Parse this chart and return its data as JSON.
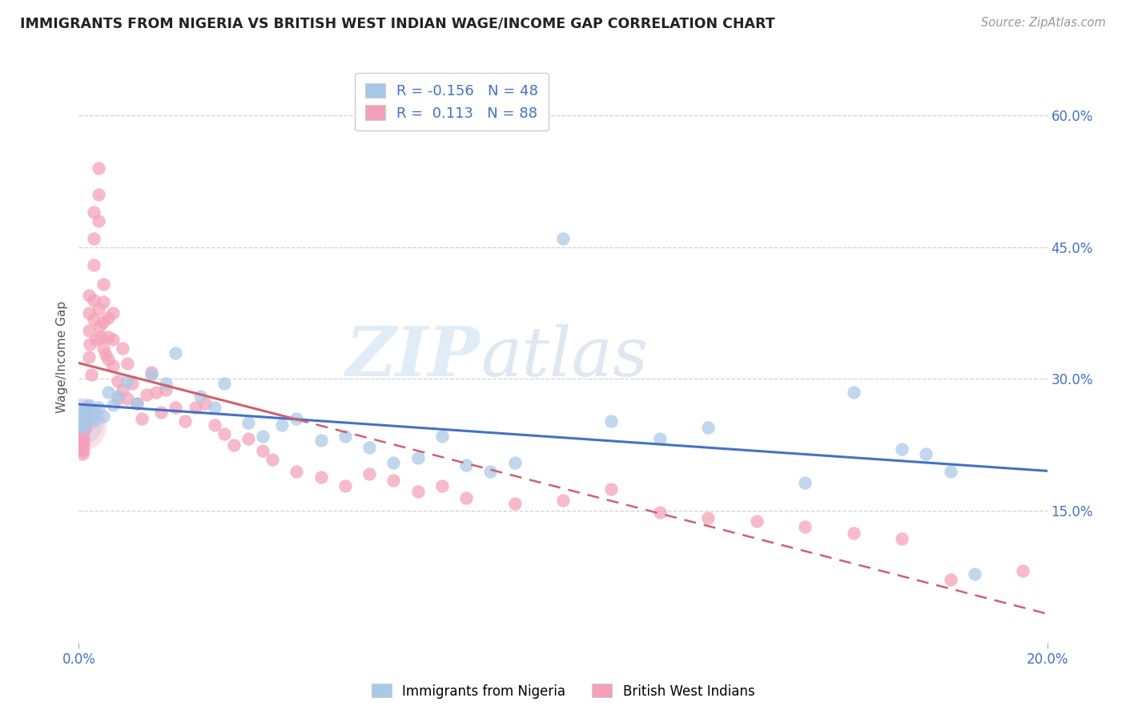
{
  "title": "IMMIGRANTS FROM NIGERIA VS BRITISH WEST INDIAN WAGE/INCOME GAP CORRELATION CHART",
  "source": "Source: ZipAtlas.com",
  "ylabel": "Wage/Income Gap",
  "yticks_labels": [
    "15.0%",
    "30.0%",
    "45.0%",
    "60.0%"
  ],
  "yticks_vals": [
    0.15,
    0.3,
    0.45,
    0.6
  ],
  "xticks_labels": [
    "0.0%",
    "20.0%"
  ],
  "xticks_vals": [
    0.0,
    0.2
  ],
  "legend1_label": "Immigrants from Nigeria",
  "legend1_R": "-0.156",
  "legend1_N": "48",
  "legend2_label": "British West Indians",
  "legend2_R": "0.113",
  "legend2_N": "88",
  "watermark_part1": "ZIP",
  "watermark_part2": "atlas",
  "blue_scatter_color": "#a8c8e8",
  "pink_scatter_color": "#f4a0b8",
  "blue_line_color": "#4472c4",
  "pink_line_color": "#d06070",
  "text_color": "#4472c4",
  "grid_color": "#d0d0d0",
  "bg_color": "#ffffff",
  "xlim": [
    0.0,
    0.2
  ],
  "ylim": [
    0.0,
    0.65
  ],
  "nigeria_x": [
    0.0003,
    0.0004,
    0.0005,
    0.0006,
    0.0008,
    0.001,
    0.001,
    0.0015,
    0.002,
    0.002,
    0.003,
    0.003,
    0.004,
    0.005,
    0.006,
    0.007,
    0.008,
    0.01,
    0.012,
    0.015,
    0.018,
    0.02,
    0.025,
    0.028,
    0.03,
    0.035,
    0.038,
    0.042,
    0.045,
    0.05,
    0.055,
    0.06,
    0.065,
    0.07,
    0.075,
    0.08,
    0.085,
    0.09,
    0.1,
    0.11,
    0.12,
    0.13,
    0.15,
    0.16,
    0.17,
    0.175,
    0.18,
    0.185
  ],
  "nigeria_y": [
    0.26,
    0.25,
    0.255,
    0.248,
    0.258,
    0.262,
    0.245,
    0.268,
    0.255,
    0.27,
    0.26,
    0.252,
    0.268,
    0.258,
    0.285,
    0.27,
    0.28,
    0.298,
    0.272,
    0.305,
    0.295,
    0.33,
    0.28,
    0.268,
    0.295,
    0.25,
    0.235,
    0.248,
    0.255,
    0.23,
    0.235,
    0.222,
    0.205,
    0.21,
    0.235,
    0.202,
    0.195,
    0.205,
    0.46,
    0.252,
    0.232,
    0.245,
    0.182,
    0.285,
    0.22,
    0.215,
    0.195,
    0.078
  ],
  "bwi_x": [
    0.0002,
    0.0003,
    0.0004,
    0.0005,
    0.0005,
    0.0006,
    0.0007,
    0.0008,
    0.001,
    0.001,
    0.001,
    0.001,
    0.0012,
    0.0015,
    0.0015,
    0.0018,
    0.002,
    0.002,
    0.002,
    0.002,
    0.0022,
    0.0025,
    0.003,
    0.003,
    0.003,
    0.003,
    0.003,
    0.0035,
    0.004,
    0.004,
    0.004,
    0.004,
    0.0042,
    0.0045,
    0.005,
    0.005,
    0.005,
    0.005,
    0.0055,
    0.006,
    0.006,
    0.006,
    0.007,
    0.007,
    0.007,
    0.008,
    0.008,
    0.009,
    0.009,
    0.01,
    0.01,
    0.011,
    0.012,
    0.013,
    0.014,
    0.015,
    0.016,
    0.017,
    0.018,
    0.02,
    0.022,
    0.024,
    0.026,
    0.028,
    0.03,
    0.032,
    0.035,
    0.038,
    0.04,
    0.045,
    0.05,
    0.055,
    0.06,
    0.065,
    0.07,
    0.075,
    0.08,
    0.09,
    0.1,
    0.11,
    0.12,
    0.13,
    0.14,
    0.15,
    0.16,
    0.17,
    0.18,
    0.195
  ],
  "bwi_y": [
    0.232,
    0.245,
    0.228,
    0.235,
    0.218,
    0.225,
    0.215,
    0.228,
    0.24,
    0.232,
    0.225,
    0.218,
    0.248,
    0.258,
    0.245,
    0.262,
    0.395,
    0.375,
    0.355,
    0.325,
    0.34,
    0.305,
    0.49,
    0.46,
    0.43,
    0.39,
    0.368,
    0.345,
    0.54,
    0.51,
    0.48,
    0.38,
    0.36,
    0.348,
    0.408,
    0.388,
    0.365,
    0.335,
    0.328,
    0.37,
    0.348,
    0.322,
    0.375,
    0.345,
    0.315,
    0.298,
    0.278,
    0.335,
    0.288,
    0.318,
    0.278,
    0.295,
    0.272,
    0.255,
    0.282,
    0.308,
    0.285,
    0.262,
    0.288,
    0.268,
    0.252,
    0.268,
    0.272,
    0.248,
    0.238,
    0.225,
    0.232,
    0.218,
    0.208,
    0.195,
    0.188,
    0.178,
    0.192,
    0.185,
    0.172,
    0.178,
    0.165,
    0.158,
    0.162,
    0.175,
    0.148,
    0.142,
    0.138,
    0.132,
    0.125,
    0.118,
    0.072,
    0.082
  ]
}
